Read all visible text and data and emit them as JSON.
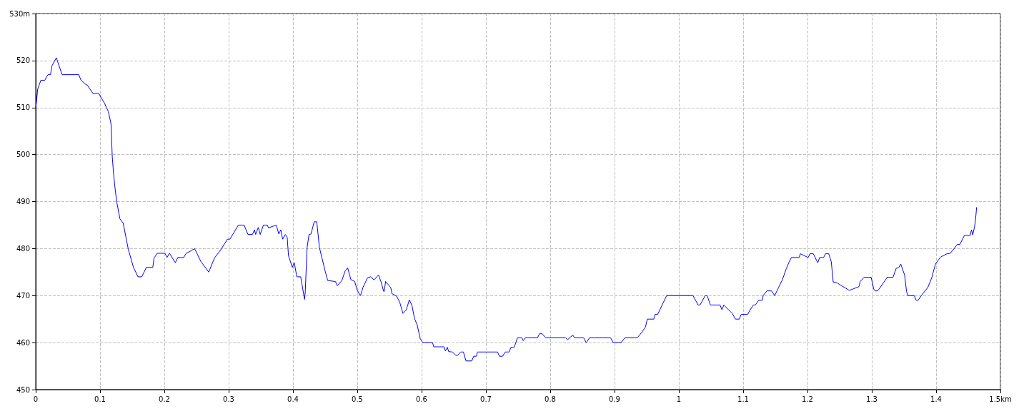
{
  "chart_data": {
    "type": "line",
    "xlim": [
      0,
      1.5
    ],
    "ylim": [
      450,
      530
    ],
    "xticks": [
      0,
      0.1,
      0.2,
      0.3,
      0.4,
      0.5,
      0.6,
      0.7,
      0.8,
      0.9,
      1,
      1.1,
      1.2,
      1.3,
      1.4,
      {
        "value": 1.5,
        "label": "1.5km"
      }
    ],
    "yticks": [
      450,
      460,
      470,
      480,
      490,
      500,
      510,
      520,
      {
        "value": 530,
        "label": "530m"
      }
    ],
    "grid": true,
    "marker": "none",
    "series": [
      {
        "color": "#0000ff",
        "x": [
          0,
          0.001,
          0.003,
          0.008,
          0.014,
          0.019,
          0.023,
          0.025,
          0.032,
          0.041,
          0.067,
          0.07,
          0.078,
          0.08,
          0.089,
          0.098,
          0.107,
          0.113,
          0.117,
          0.118,
          0.119,
          0.121,
          0.123,
          0.126,
          0.131,
          0.136,
          0.144,
          0.152,
          0.159,
          0.165,
          0.172,
          0.182,
          0.184,
          0.189,
          0.201,
          0.204,
          0.208,
          0.217,
          0.221,
          0.23,
          0.234,
          0.241,
          0.247,
          0.257,
          0.269,
          0.278,
          0.289,
          0.298,
          0.302,
          0.315,
          0.324,
          0.33,
          0.337,
          0.34,
          0.342,
          0.346,
          0.349,
          0.354,
          0.36,
          0.362,
          0.374,
          0.378,
          0.381,
          0.384,
          0.388,
          0.391,
          0.393,
          0.399,
          0.402,
          0.406,
          0.412,
          0.418,
          0.419,
          0.422,
          0.425,
          0.428,
          0.433,
          0.437,
          0.441,
          0.45,
          0.454,
          0.466,
          0.469,
          0.476,
          0.481,
          0.485,
          0.49,
          0.496,
          0.5,
          0.505,
          0.509,
          0.516,
          0.521,
          0.526,
          0.533,
          0.537,
          0.541,
          0.542,
          0.544,
          0.552,
          0.554,
          0.561,
          0.566,
          0.571,
          0.576,
          0.581,
          0.585,
          0.589,
          0.593,
          0.598,
          0.602,
          0.617,
          0.619,
          0.635,
          0.637,
          0.64,
          0.642,
          0.648,
          0.652,
          0.655,
          0.661,
          0.665,
          0.669,
          0.678,
          0.681,
          0.685,
          0.687,
          0.718,
          0.721,
          0.726,
          0.73,
          0.736,
          0.739,
          0.744,
          0.749,
          0.756,
          0.758,
          0.761,
          0.78,
          0.784,
          0.788,
          0.793,
          0.824,
          0.827,
          0.83,
          0.835,
          0.838,
          0.852,
          0.856,
          0.861,
          0.894,
          0.898,
          0.91,
          0.916,
          0.935,
          0.942,
          0.948,
          0.951,
          0.961,
          0.963,
          0.967,
          0.981,
          1.022,
          1.03,
          1.033,
          1.041,
          1.044,
          1.049,
          1.064,
          1.067,
          1.07,
          1.083,
          1.088,
          1.094,
          1.097,
          1.107,
          1.111,
          1.116,
          1.119,
          1.124,
          1.13,
          1.131,
          1.137,
          1.144,
          1.149,
          1.155,
          1.161,
          1.167,
          1.171,
          1.175,
          1.187,
          1.189,
          1.201,
          1.204,
          1.209,
          1.216,
          1.219,
          1.225,
          1.228,
          1.233,
          1.237,
          1.24,
          1.246,
          1.265,
          1.28,
          1.282,
          1.288,
          1.299,
          1.303,
          1.305,
          1.309,
          1.313,
          1.324,
          1.333,
          1.338,
          1.342,
          1.345,
          1.351,
          1.354,
          1.356,
          1.366,
          1.369,
          1.372,
          1.377,
          1.387,
          1.393,
          1.399,
          1.407,
          1.417,
          1.422,
          1.428,
          1.433,
          1.437,
          1.444,
          1.453,
          1.455,
          1.457,
          1.46,
          1.461,
          1.462,
          1.463
        ],
        "values": [
          510,
          511,
          513.9,
          515.8,
          515.8,
          517,
          517,
          518.8,
          520.6,
          517,
          517,
          515.9,
          514.9,
          514.8,
          513,
          513,
          510.9,
          509.1,
          506.6,
          503.3,
          499.5,
          496,
          493.2,
          489.9,
          486.3,
          485.4,
          479.8,
          476,
          474,
          474,
          476,
          476,
          478,
          479,
          479,
          478.1,
          479,
          477,
          478.1,
          478.1,
          479,
          479.5,
          480,
          477.2,
          475,
          478,
          480,
          482,
          482,
          485,
          485,
          483,
          483,
          484,
          483,
          484.5,
          483,
          485,
          485,
          484.4,
          485,
          483.1,
          484,
          482,
          483,
          482.4,
          478.5,
          476,
          477,
          474,
          474,
          469.2,
          470.6,
          480.3,
          483,
          483.1,
          485.7,
          485.7,
          480.3,
          475.2,
          473.2,
          473,
          472.1,
          473.2,
          475.2,
          475.9,
          473.4,
          473,
          471.1,
          470,
          471.8,
          473.8,
          474,
          473.3,
          474.4,
          472.9,
          470.9,
          470.9,
          473,
          471.7,
          470.4,
          469.9,
          468.6,
          466.2,
          466.9,
          469.1,
          467.9,
          465.1,
          463.8,
          460.8,
          460,
          460,
          459.1,
          459.1,
          458.2,
          459,
          458.1,
          458,
          457.4,
          457.2,
          458,
          458,
          456.1,
          456.1,
          457.1,
          457.1,
          458,
          458,
          457.1,
          457.1,
          458,
          458,
          459,
          459,
          461,
          461,
          460.4,
          461,
          461,
          462,
          461.8,
          461,
          461,
          460.6,
          461,
          461.6,
          461,
          461,
          460,
          461,
          461,
          460,
          460,
          461,
          461,
          462.1,
          463.3,
          465,
          465,
          466,
          466,
          470,
          470,
          468,
          468,
          470,
          470,
          468,
          468,
          467,
          468,
          466.2,
          465,
          465,
          466,
          466,
          467,
          468,
          468,
          469,
          469,
          470,
          471,
          471,
          470,
          471.7,
          473.4,
          475.7,
          477,
          478.1,
          478.1,
          478.9,
          478.1,
          478.9,
          478.9,
          477,
          478.1,
          478.1,
          478.9,
          478.9,
          477.2,
          472.9,
          472.7,
          471.1,
          471.9,
          473,
          473.9,
          473.9,
          471.4,
          471,
          471,
          471.7,
          473.9,
          473.9,
          475.8,
          476,
          476.7,
          474.4,
          470.9,
          470,
          470,
          469,
          469,
          470,
          471.7,
          473.7,
          476.7,
          478.2,
          478.9,
          479,
          480,
          480.9,
          480.9,
          482.8,
          482.8,
          484,
          482.9,
          484.8,
          485.9,
          487.2,
          488.8
        ]
      }
    ]
  }
}
